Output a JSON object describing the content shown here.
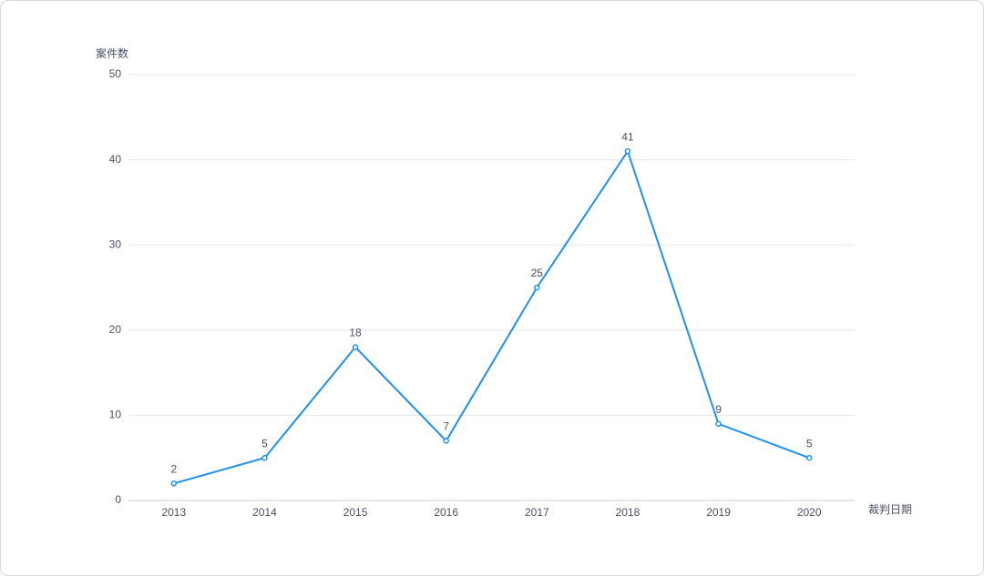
{
  "chart_data": {
    "type": "line",
    "y_label": "案件数",
    "x_label": "裁判日期",
    "categories": [
      "2013",
      "2014",
      "2015",
      "2016",
      "2017",
      "2018",
      "2019",
      "2020"
    ],
    "series": [
      {
        "name": "案件数",
        "color": "#1e90f0",
        "values": [
          2,
          5,
          18,
          7,
          25,
          41,
          9,
          5
        ]
      }
    ],
    "ylim": [
      0,
      50
    ],
    "yticks": [
      0,
      10,
      20,
      30,
      40,
      50
    ],
    "grid": true
  }
}
